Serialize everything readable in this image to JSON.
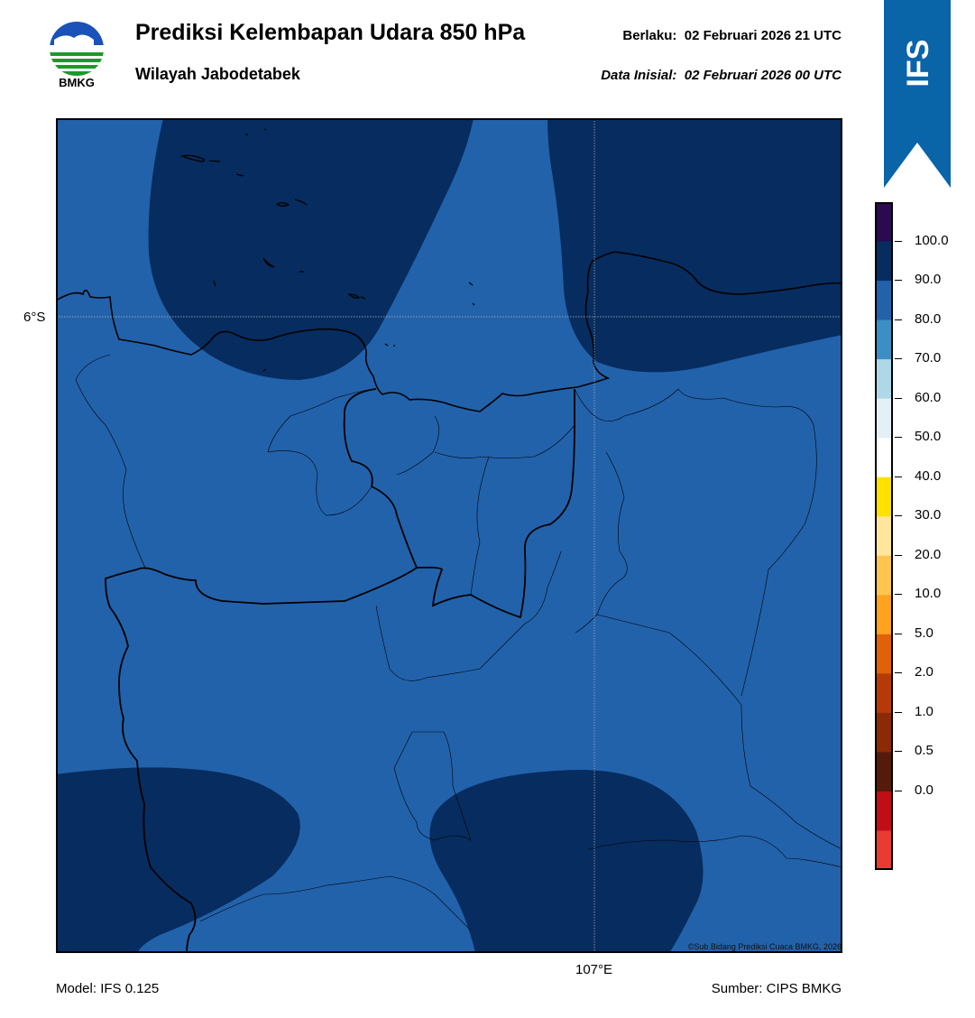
{
  "header": {
    "title": "Prediksi Kelembapan Udara 850 hPa",
    "subtitle": "Wilayah Jabodetabek",
    "valid_label": "Berlaku:",
    "valid_value": "02 Februari 2026 21 UTC",
    "init_label": "Data Inisial:",
    "init_value": "02 Februari 2026 00 UTC"
  },
  "logo": {
    "text": "BMKG",
    "icon": "bmkg-logo-icon"
  },
  "badge": {
    "text": "IFS",
    "color": "#0a64a8"
  },
  "map": {
    "lat_label": "6°S",
    "lon_label": "107°E",
    "copyright": "©Sub Bidang Prediksi Cuaca BMKG, 2026",
    "fill_colors": {
      "80-90": "#2262ab",
      "90-100": "#072c5f"
    }
  },
  "footer": {
    "model": "Model: IFS 0.125",
    "source": "Sumber: CIPS BMKG"
  },
  "colorbar": {
    "ticks": [
      "100.0",
      "90.0",
      "80.0",
      "70.0",
      "60.0",
      "50.0",
      "40.0",
      "30.0",
      "20.0",
      "10.0",
      "5.0",
      "2.0",
      "1.0",
      "0.5",
      "0.0"
    ],
    "colors": [
      "#2c0a4f",
      "#072c5f",
      "#2262ab",
      "#3b8fc4",
      "#aed8e8",
      "#e4eff6",
      "#ffffff",
      "#ffe100",
      "#ffe69c",
      "#ffc54f",
      "#ffa21e",
      "#e06106",
      "#b63a05",
      "#8b2a05",
      "#541b0a",
      "#c00d16",
      "#ea3b33"
    ]
  }
}
